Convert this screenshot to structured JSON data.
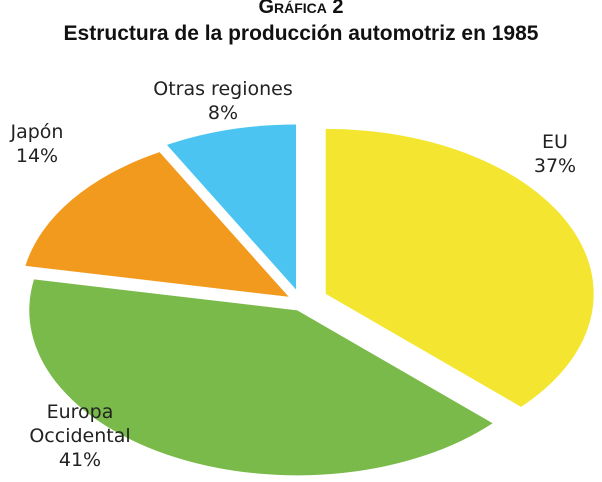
{
  "chart_data": {
    "type": "pie",
    "title": "Gráfica 2",
    "subtitle": "Estructura de la producción automotriz en 1985",
    "categories": [
      "EU",
      "Europa Occidental",
      "Japón",
      "Otras regiones"
    ],
    "values": [
      37,
      41,
      14,
      8
    ],
    "value_labels": [
      "37%",
      "41%",
      "14%",
      "8%"
    ],
    "colors": [
      "#f4e630",
      "#7aba4a",
      "#f29a1e",
      "#4cc4f1"
    ]
  }
}
